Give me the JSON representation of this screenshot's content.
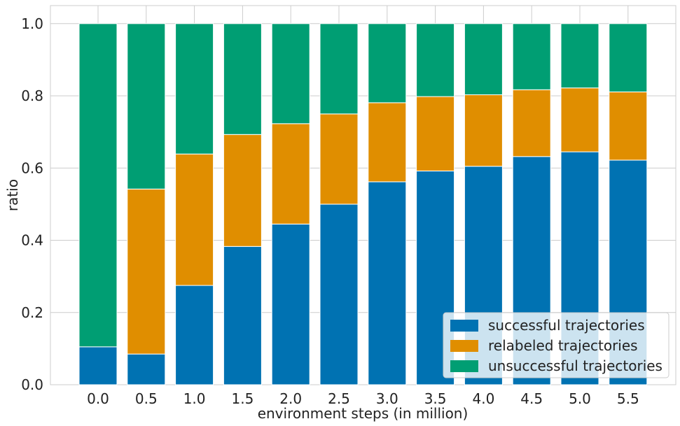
{
  "chart_data": {
    "type": "bar",
    "stacked": true,
    "title": "",
    "xlabel": "environment steps (in million)",
    "ylabel": "ratio",
    "categories": [
      "0.0",
      "0.5",
      "1.0",
      "1.5",
      "2.0",
      "2.5",
      "3.0",
      "3.5",
      "4.0",
      "4.5",
      "5.0",
      "5.5"
    ],
    "ylim": [
      0,
      1.05
    ],
    "yticks": [
      "0.0",
      "0.2",
      "0.4",
      "0.6",
      "0.8",
      "1.0"
    ],
    "grid": true,
    "legend_position": "bottom-right",
    "series": [
      {
        "name": "successful trajectories",
        "color": "#0072b2",
        "values": [
          0.105,
          0.085,
          0.275,
          0.383,
          0.445,
          0.5,
          0.562,
          0.592,
          0.605,
          0.632,
          0.645,
          0.622
        ]
      },
      {
        "name": "relabeled trajectories",
        "color": "#e08e00",
        "values": [
          0.0,
          0.457,
          0.364,
          0.31,
          0.278,
          0.25,
          0.219,
          0.206,
          0.198,
          0.185,
          0.177,
          0.189
        ]
      },
      {
        "name": "unsuccessful trajectories",
        "color": "#009e73",
        "values": [
          0.895,
          0.458,
          0.361,
          0.307,
          0.277,
          0.25,
          0.219,
          0.202,
          0.197,
          0.183,
          0.178,
          0.189
        ]
      }
    ]
  }
}
